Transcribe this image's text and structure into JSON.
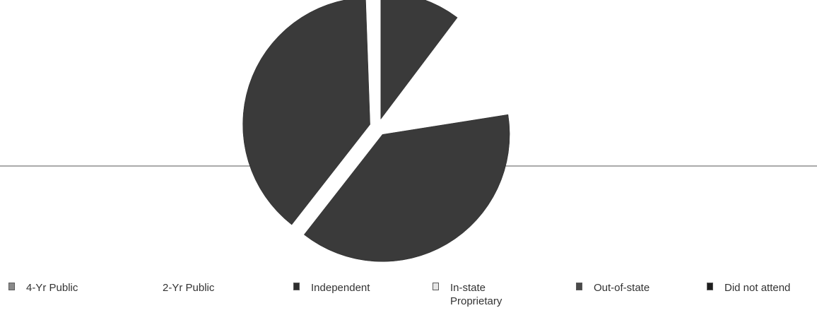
{
  "colors": {
    "slice_fill": "#3a3a3a",
    "rule_line": "#555555"
  },
  "chart_data": {
    "type": "pie",
    "title": "",
    "slices": [
      {
        "label": "4-Yr Public",
        "value": 0,
        "color": "#8a8a8a",
        "swatch": "#8a8a8a"
      },
      {
        "label": "2-Yr Public",
        "value": 0,
        "color": "#ffffff",
        "swatch": ""
      },
      {
        "label": "Independent",
        "value": 11,
        "color": "#3a3a3a",
        "swatch": "#2e2e2e"
      },
      {
        "label": "In-state Proprietary",
        "value": 0,
        "color": "#e6e6e6",
        "swatch": "#e6e6e6"
      },
      {
        "label": "Out-of-state",
        "value": 13,
        "color": "#ffffff",
        "swatch": "#4a4a4a"
      },
      {
        "label": "Did not attend",
        "value": 76,
        "color": "#3a3a3a",
        "swatch": "#1e1e1e"
      }
    ],
    "drawn_sectors": [
      {
        "label": "Independent",
        "start_deg": 0,
        "end_deg": 37
      },
      {
        "label": "Out-of-state",
        "start_deg": 37,
        "end_deg": 81,
        "empty": true
      },
      {
        "label": "Did not attend",
        "start_deg": 81,
        "end_deg": 218
      },
      {
        "label": "Did not attend",
        "start_deg": 218,
        "end_deg": 358
      }
    ],
    "legend": {
      "position": "bottom",
      "items": [
        {
          "label": "4-Yr Public",
          "swatch": "#8a8a8a",
          "lines": [
            "4-Yr Public"
          ]
        },
        {
          "label": "2-Yr Public",
          "swatch": "",
          "lines": [
            "2-Yr Public"
          ]
        },
        {
          "label": "Independent",
          "swatch": "#2e2e2e",
          "lines": [
            "Independent"
          ]
        },
        {
          "label": "In-state Proprietary",
          "swatch": "#e6e6e6",
          "lines": [
            "In-state",
            "Proprietary"
          ]
        },
        {
          "label": "Out-of-state",
          "swatch": "#4a4a4a",
          "lines": [
            "Out-of-state"
          ]
        },
        {
          "label": "Did not attend",
          "swatch": "#1e1e1e",
          "lines": [
            "Did not attend"
          ]
        }
      ]
    }
  }
}
